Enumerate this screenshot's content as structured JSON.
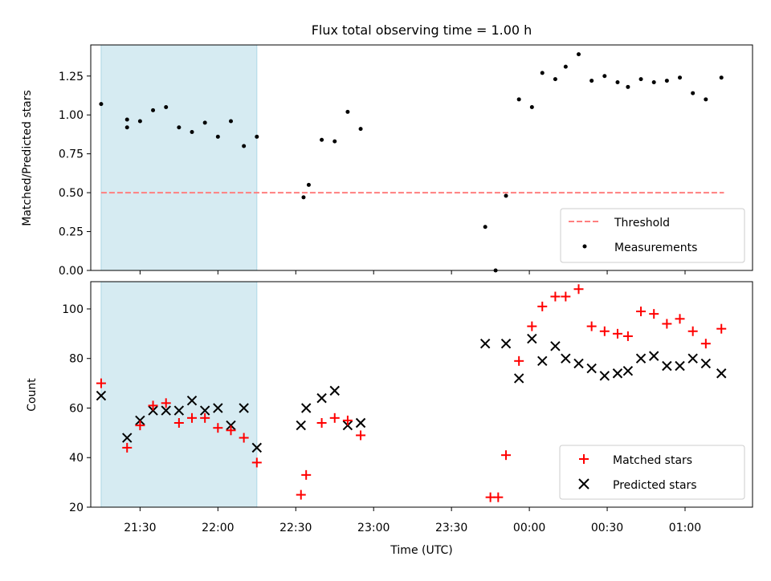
{
  "chart_data": [
    {
      "type": "scatter",
      "title": "Flux total observing time = 1.00 h",
      "xlabel": "",
      "ylabel": "Matched/Predicted stars",
      "xlim": [
        "21:11",
        "01:26"
      ],
      "ylim": [
        0,
        1.45
      ],
      "yticks": [
        "0.00",
        "0.25",
        "0.50",
        "0.75",
        "1.00",
        "1.25"
      ],
      "highlight_span": [
        "21:15",
        "22:15"
      ],
      "threshold": {
        "label": "Threshold",
        "value": 0.5,
        "x_range": [
          "21:15",
          "01:15"
        ],
        "color": "#ff7f7f"
      },
      "series": [
        {
          "name": "Measurements",
          "color": "#000000",
          "x": [
            "21:15",
            "21:25",
            "21:25",
            "21:30",
            "21:35",
            "21:40",
            "21:45",
            "21:50",
            "21:55",
            "22:00",
            "22:05",
            "22:10",
            "22:15",
            "22:33",
            "22:35",
            "22:40",
            "22:45",
            "22:50",
            "22:55",
            "23:43",
            "23:47",
            "23:51",
            "23:56",
            "00:01",
            "00:05",
            "00:10",
            "00:14",
            "00:19",
            "00:24",
            "00:29",
            "00:34",
            "00:38",
            "00:43",
            "00:48",
            "00:53",
            "00:58",
            "01:03",
            "01:08",
            "01:14"
          ],
          "y": [
            1.07,
            0.97,
            0.92,
            0.96,
            1.03,
            1.05,
            0.92,
            0.89,
            0.95,
            0.86,
            0.96,
            0.8,
            0.86,
            0.47,
            0.55,
            0.84,
            0.83,
            1.02,
            0.91,
            0.28,
            0.0,
            0.48,
            1.1,
            1.05,
            1.27,
            1.23,
            1.31,
            1.39,
            1.22,
            1.25,
            1.21,
            1.18,
            1.23,
            1.21,
            1.22,
            1.24,
            1.14,
            1.1,
            1.24
          ]
        }
      ],
      "legend": {
        "position": "lower right",
        "entries": [
          "Threshold",
          "Measurements"
        ]
      }
    },
    {
      "type": "scatter",
      "title": "",
      "xlabel": "Time (UTC)",
      "ylabel": "Count",
      "xlim": [
        "21:11",
        "01:26"
      ],
      "ylim": [
        20,
        111
      ],
      "yticks": [
        "20",
        "40",
        "60",
        "80",
        "100"
      ],
      "xticks": [
        "21:30",
        "22:00",
        "22:30",
        "23:00",
        "23:30",
        "00:00",
        "00:30",
        "01:00"
      ],
      "highlight_span": [
        "21:15",
        "22:15"
      ],
      "series": [
        {
          "name": "Matched stars",
          "marker": "plus",
          "color": "#ff0000",
          "x": [
            "21:15",
            "21:25",
            "21:30",
            "21:35",
            "21:40",
            "21:45",
            "21:50",
            "21:55",
            "22:00",
            "22:05",
            "22:10",
            "22:15",
            "22:32",
            "22:34",
            "22:40",
            "22:45",
            "22:50",
            "22:55",
            "23:45",
            "23:48",
            "23:51",
            "23:56",
            "00:01",
            "00:05",
            "00:10",
            "00:14",
            "00:19",
            "00:24",
            "00:29",
            "00:34",
            "00:38",
            "00:43",
            "00:48",
            "00:53",
            "00:58",
            "01:03",
            "01:08",
            "01:14"
          ],
          "y": [
            70,
            44,
            53,
            61,
            62,
            54,
            56,
            56,
            52,
            51,
            48,
            38,
            25,
            33,
            54,
            56,
            55,
            49,
            24,
            24,
            41,
            79,
            93,
            101,
            105,
            105,
            108,
            93,
            91,
            90,
            89,
            99,
            98,
            94,
            96,
            91,
            86,
            92
          ]
        },
        {
          "name": "Predicted stars",
          "marker": "x",
          "color": "#000000",
          "x": [
            "21:15",
            "21:25",
            "21:30",
            "21:35",
            "21:40",
            "21:45",
            "21:50",
            "21:55",
            "22:00",
            "22:05",
            "22:10",
            "22:15",
            "22:32",
            "22:34",
            "22:40",
            "22:45",
            "22:50",
            "22:55",
            "23:43",
            "23:51",
            "23:56",
            "00:01",
            "00:05",
            "00:10",
            "00:14",
            "00:19",
            "00:24",
            "00:29",
            "00:34",
            "00:38",
            "00:43",
            "00:48",
            "00:53",
            "00:58",
            "01:03",
            "01:08",
            "01:14"
          ],
          "y": [
            65,
            48,
            55,
            59,
            59,
            59,
            63,
            59,
            60,
            53,
            60,
            44,
            53,
            60,
            64,
            67,
            53,
            54,
            86,
            86,
            72,
            88,
            79,
            85,
            80,
            78,
            76,
            73,
            74,
            75,
            80,
            81,
            77,
            77,
            80,
            78,
            74
          ]
        }
      ],
      "legend": {
        "position": "lower right",
        "entries": [
          "Matched stars",
          "Predicted stars"
        ]
      }
    }
  ]
}
